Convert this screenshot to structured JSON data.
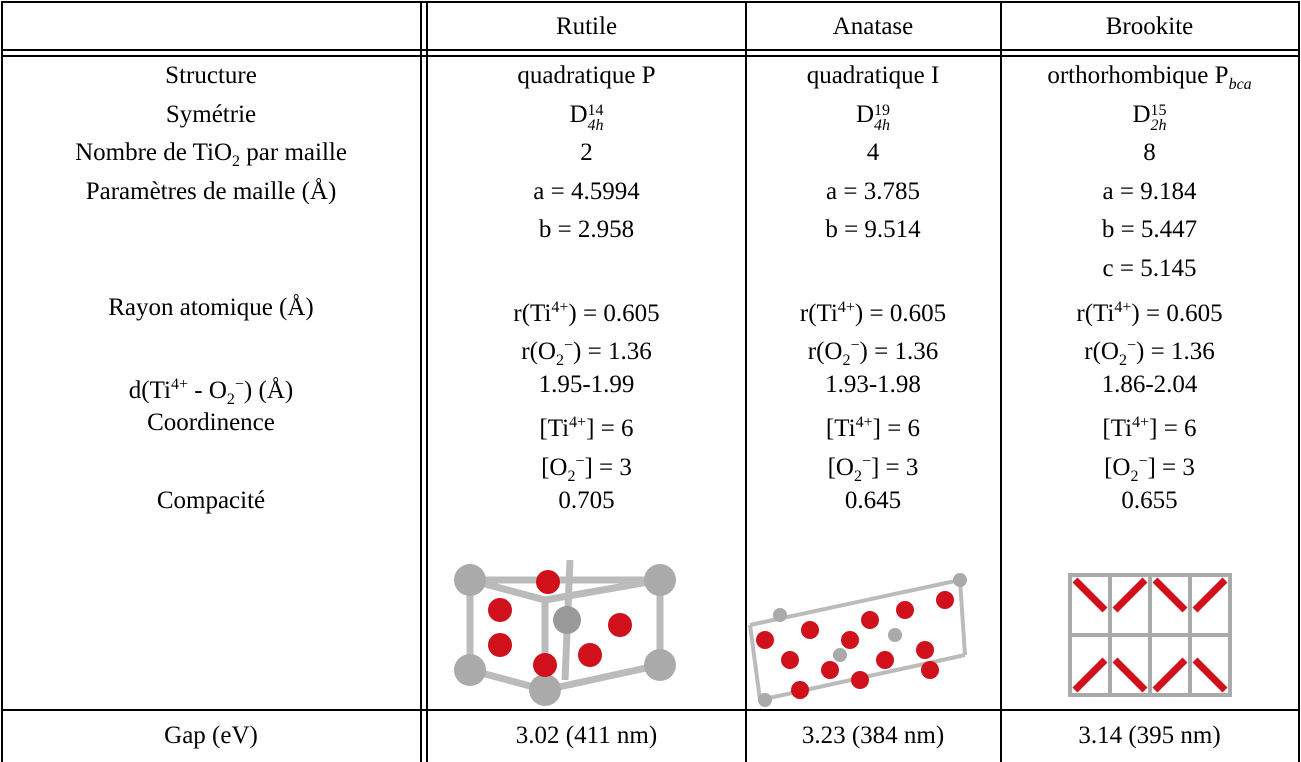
{
  "header": [
    "Rutile",
    "Anatase",
    "Brookite"
  ],
  "rows": [
    {
      "label": [
        "Structure"
      ],
      "cells": [
        [
          "quadratique P"
        ],
        [
          "quadratique I"
        ],
        [
          "orthorhombique P",
          {
            "sub": "bca"
          }
        ]
      ]
    },
    {
      "label": [
        "Symétrie"
      ],
      "cells": [
        [
          "D",
          {
            "sup": "14",
            "sub": "4h"
          }
        ],
        [
          "D",
          {
            "sup": "19",
            "sub": "4h"
          }
        ],
        [
          "D",
          {
            "sup": "15",
            "sub": "2h"
          }
        ]
      ]
    },
    {
      "label": [
        "Nombre de TiO",
        {
          "sub": "2"
        },
        " par maille"
      ],
      "cells": [
        [
          "2"
        ],
        [
          "4"
        ],
        [
          "8"
        ]
      ]
    },
    {
      "label": [
        "Paramètres de maille (Å)"
      ],
      "cells": [
        [
          "a = 4.5994"
        ],
        [
          "a = 3.785"
        ],
        [
          "a = 9.184"
        ]
      ]
    },
    {
      "label": null,
      "cells": [
        [
          "b = 2.958"
        ],
        [
          "b = 9.514"
        ],
        [
          "b = 5.447"
        ]
      ]
    },
    {
      "label": null,
      "cells": [
        null,
        null,
        [
          "c = 5.145"
        ]
      ]
    },
    {
      "label": [
        "Rayon atomique (Å)"
      ],
      "cells": [
        [
          "r(Ti",
          {
            "sup": "4+"
          },
          ") = 0.605"
        ],
        [
          "r(Ti",
          {
            "sup": "4+"
          },
          ") = 0.605"
        ],
        [
          "r(Ti",
          {
            "sup": "4+"
          },
          ") = 0.605"
        ]
      ]
    },
    {
      "label": null,
      "cells": [
        [
          "r(O",
          {
            "sub": "2"
          },
          {
            "sup": "−"
          },
          ") = 1.36"
        ],
        [
          "r(O",
          {
            "sub": "2"
          },
          {
            "sup": "−"
          },
          ") = 1.36"
        ],
        [
          "r(O",
          {
            "sub": "2"
          },
          {
            "sup": "−"
          },
          ") = 1.36"
        ]
      ]
    },
    {
      "label": [
        "d(Ti",
        {
          "sup": "4+"
        },
        " - O",
        {
          "sub": "2"
        },
        {
          "sup": "−"
        },
        ") (Å)"
      ],
      "cells": [
        [
          "1.95-1.99"
        ],
        [
          "1.93-1.98"
        ],
        [
          "1.86-2.04"
        ]
      ]
    },
    {
      "label": [
        "Coordinence"
      ],
      "cells": [
        [
          "[Ti",
          {
            "sup": "4+"
          },
          "] = 6"
        ],
        [
          "[Ti",
          {
            "sup": "4+"
          },
          "] = 6"
        ],
        [
          "[Ti",
          {
            "sup": "4+"
          },
          "] = 6"
        ]
      ]
    },
    {
      "label": null,
      "cells": [
        [
          "[O",
          {
            "sub": "2"
          },
          {
            "sup": "−"
          },
          "] = 3"
        ],
        [
          "[O",
          {
            "sub": "2"
          },
          {
            "sup": "−"
          },
          "] = 3"
        ],
        [
          "[O",
          {
            "sub": "2"
          },
          {
            "sup": "−"
          },
          "] = 3"
        ]
      ]
    },
    {
      "label": [
        "Compacité"
      ],
      "cells": [
        [
          "0.705"
        ],
        [
          "0.645"
        ],
        [
          "0.655"
        ]
      ]
    }
  ],
  "footer": {
    "label": "Gap (eV)",
    "cells": [
      "3.02 (411 nm)",
      "3.23 (384 nm)",
      "3.14 (395 nm)"
    ]
  }
}
